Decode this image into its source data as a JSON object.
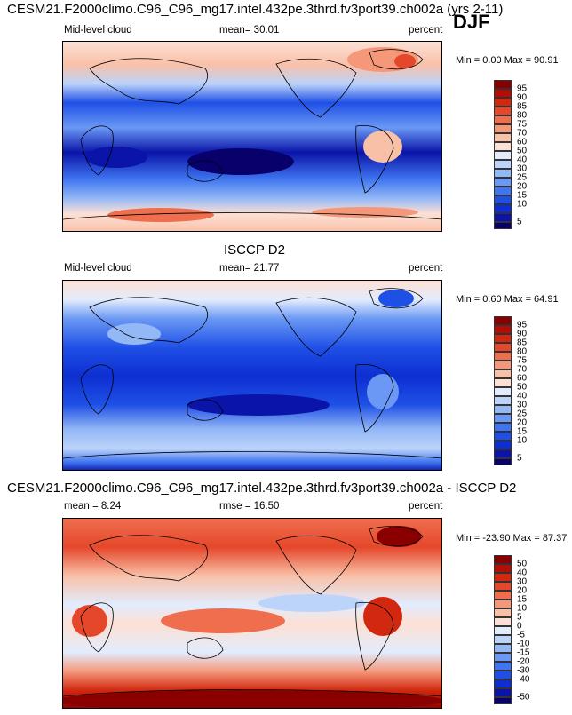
{
  "season": "DJF",
  "colors": {
    "abs_scale": [
      "#08006b",
      "#0a14a8",
      "#0d2fd1",
      "#1f50e6",
      "#3f75f0",
      "#6a98f4",
      "#93b8f6",
      "#bcd3fa",
      "#e2ecfd",
      "#fde0d4",
      "#f9c0a8",
      "#f5987a",
      "#ef6e4e",
      "#e5472a",
      "#d1280f",
      "#b30e06",
      "#8a0000"
    ],
    "diff_scale": [
      "#08006b",
      "#0a14a8",
      "#0d2fd1",
      "#1f50e6",
      "#3f75f0",
      "#6a98f4",
      "#93b8f6",
      "#bcd3fa",
      "#e2ecfd",
      "#fde0d4",
      "#f9c0a8",
      "#f5987a",
      "#ef6e4e",
      "#e5472a",
      "#d1280f",
      "#b30e06",
      "#8a0000"
    ],
    "land_outline": "#000000"
  },
  "chart_data": [
    {
      "type": "heatmap",
      "title": "CESM21.F2000climo.C96_C96_mg17.intel.432pe.3thrd.fv3port39.ch002a (yrs 2-11)",
      "variable": "Mid-level cloud",
      "units": "percent",
      "mean_text": "mean=  30.01",
      "minmax_text": "Min =   0.00 Max =  90.91",
      "min": 0.0,
      "max": 90.91,
      "mean": 30.01,
      "colorbar_levels": [
        "95",
        "90",
        "85",
        "80",
        "75",
        "70",
        "60",
        "50",
        "40",
        "30",
        "25",
        "20",
        "15",
        "10",
        "5"
      ]
    },
    {
      "type": "heatmap",
      "title": "ISCCP D2",
      "variable": "Mid-level cloud",
      "units": "percent",
      "mean_text": "mean=  21.77",
      "minmax_text": "Min =   0.60 Max =  64.91",
      "min": 0.6,
      "max": 64.91,
      "mean": 21.77,
      "colorbar_levels": [
        "95",
        "90",
        "85",
        "80",
        "75",
        "70",
        "60",
        "50",
        "40",
        "30",
        "25",
        "20",
        "15",
        "10",
        "5"
      ]
    },
    {
      "type": "heatmap",
      "title": "CESM21.F2000climo.C96_C96_mg17.intel.432pe.3thrd.fv3port39.ch002a - ISCCP D2",
      "units": "percent",
      "mean_text": "mean =   8.24",
      "rmse_text": "rmse =  16.50",
      "minmax_text": "Min = -23.90 Max =  87.37",
      "min": -23.9,
      "max": 87.37,
      "mean": 8.24,
      "rmse": 16.5,
      "colorbar_levels": [
        "50",
        "40",
        "30",
        "20",
        "15",
        "10",
        "5",
        "0",
        "-5",
        "-10",
        "-15",
        "-20",
        "-30",
        "-40",
        "-50"
      ]
    }
  ]
}
